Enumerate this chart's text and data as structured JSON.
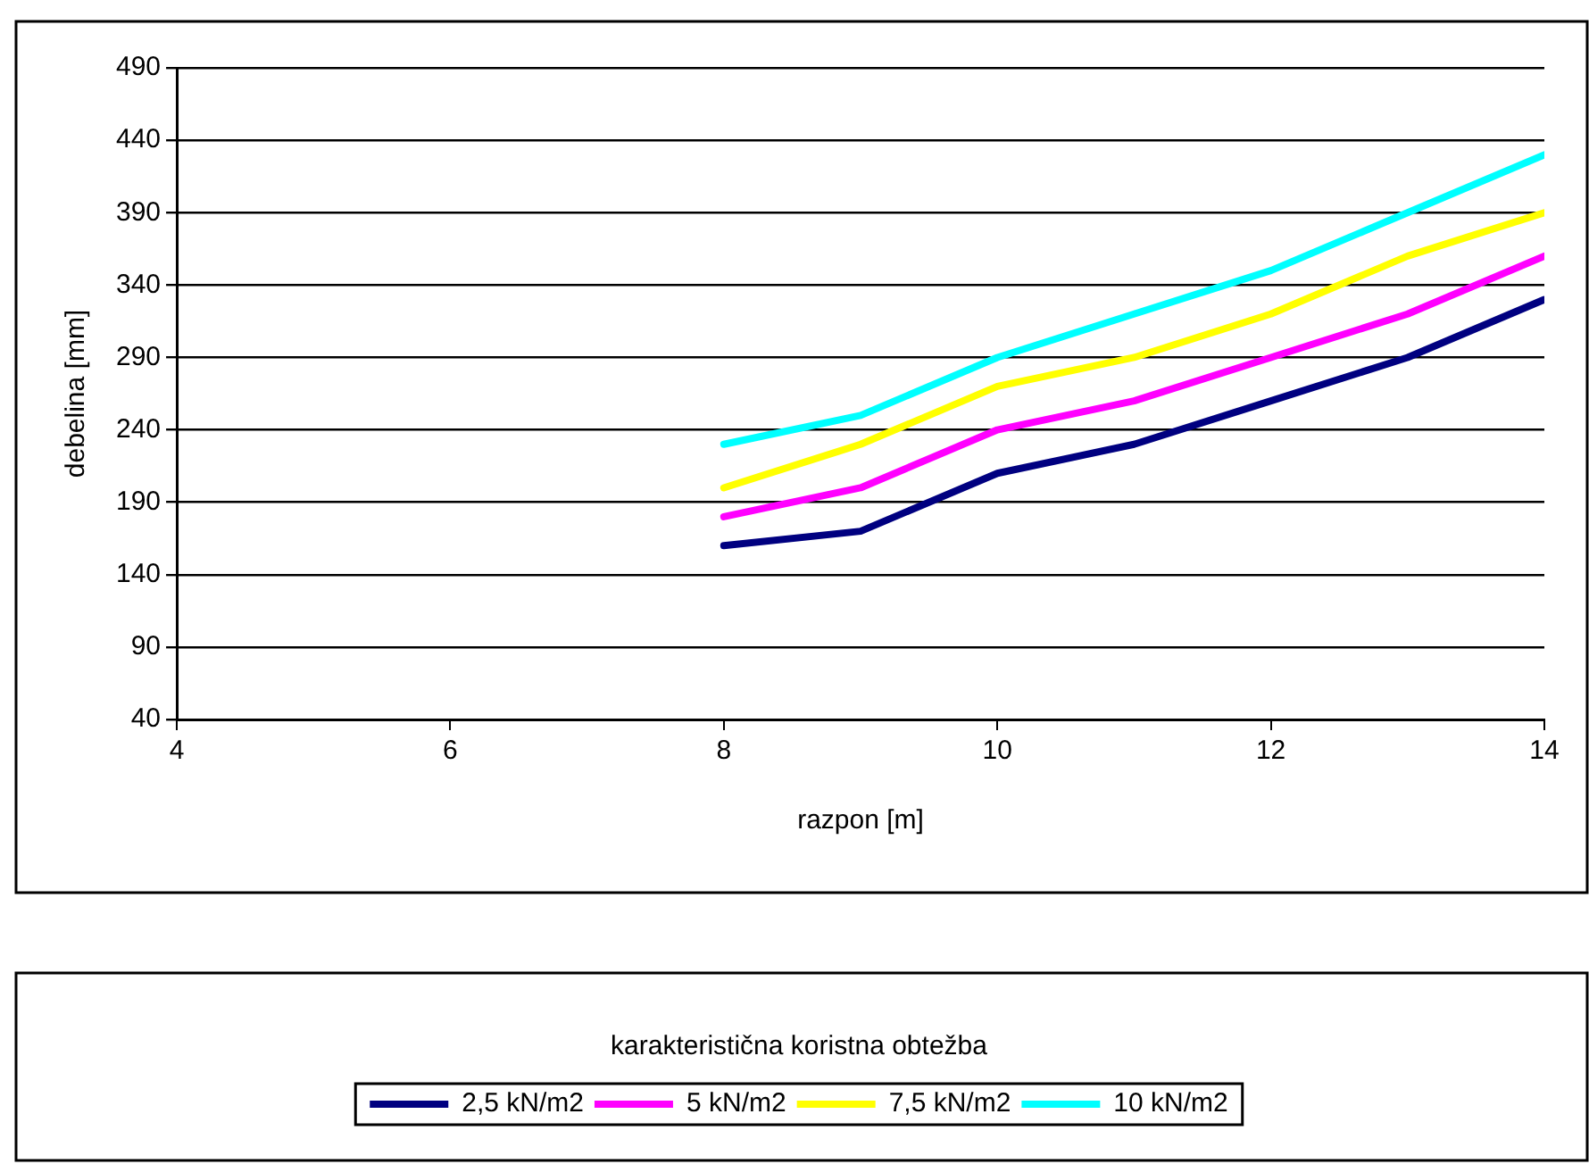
{
  "chart_data": {
    "type": "line",
    "xlabel": "razpon [m]",
    "ylabel": "debelina [mm]",
    "legend_title": "karakteristična koristna obtežba",
    "x": [
      8,
      9,
      10,
      11,
      12,
      13,
      14
    ],
    "xlim": [
      4,
      14
    ],
    "xticks": [
      4,
      6,
      8,
      10,
      12,
      14
    ],
    "ylim": [
      40,
      490
    ],
    "yticks": [
      40,
      90,
      140,
      190,
      240,
      290,
      340,
      390,
      440,
      490
    ],
    "grid": "y",
    "legend": "bottom",
    "marker": "none",
    "line_style": "solid",
    "series": [
      {
        "name": "2,5 kN/m2",
        "color": "#000080",
        "values": [
          160,
          170,
          210,
          230,
          260,
          290,
          330
        ]
      },
      {
        "name": "5 kN/m2",
        "color": "#ff00ff",
        "values": [
          180,
          200,
          240,
          260,
          290,
          320,
          360
        ]
      },
      {
        "name": "7,5 kN/m2",
        "color": "#ffff00",
        "values": [
          200,
          230,
          270,
          290,
          320,
          360,
          390
        ]
      },
      {
        "name": "10 kN/m2",
        "color": "#00ffff",
        "values": [
          230,
          250,
          290,
          320,
          350,
          390,
          430
        ]
      }
    ]
  }
}
